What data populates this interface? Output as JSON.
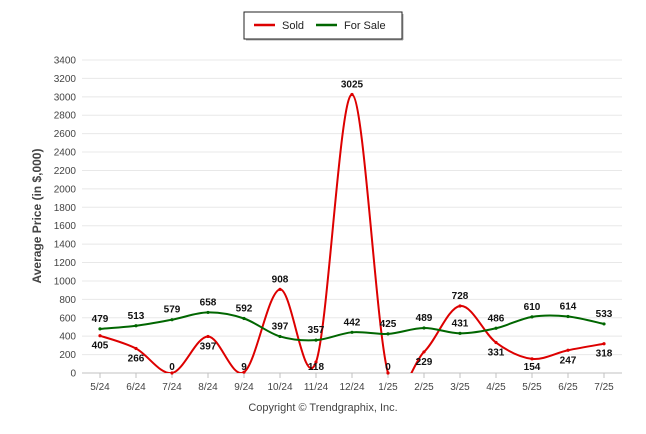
{
  "chart_data": {
    "type": "line",
    "ylabel": "Average Price (in $,000)",
    "xlabel": "",
    "ylim": [
      0,
      3400
    ],
    "yticks": [
      0,
      200,
      400,
      600,
      800,
      1000,
      1200,
      1400,
      1600,
      1800,
      2000,
      2200,
      2400,
      2600,
      2800,
      3000,
      3200,
      3400
    ],
    "categories": [
      "5/24",
      "6/24",
      "7/24",
      "8/24",
      "9/24",
      "10/24",
      "11/24",
      "12/24",
      "1/25",
      "2/25",
      "3/25",
      "4/25",
      "5/25",
      "6/25",
      "7/25"
    ],
    "series": [
      {
        "name": "Sold",
        "color": "#dd0000",
        "values": [
          405,
          266,
          0,
          397,
          9,
          908,
          118,
          3025,
          0,
          229,
          728,
          331,
          154,
          247,
          318
        ]
      },
      {
        "name": "For Sale",
        "color": "#006600",
        "values": [
          479,
          513,
          579,
          658,
          592,
          397,
          357,
          442,
          425,
          489,
          431,
          486,
          610,
          614,
          533
        ]
      }
    ],
    "legend_position": "top-center",
    "grid": true
  },
  "footer": {
    "copyright": "Copyright © Trendgraphix, Inc."
  }
}
